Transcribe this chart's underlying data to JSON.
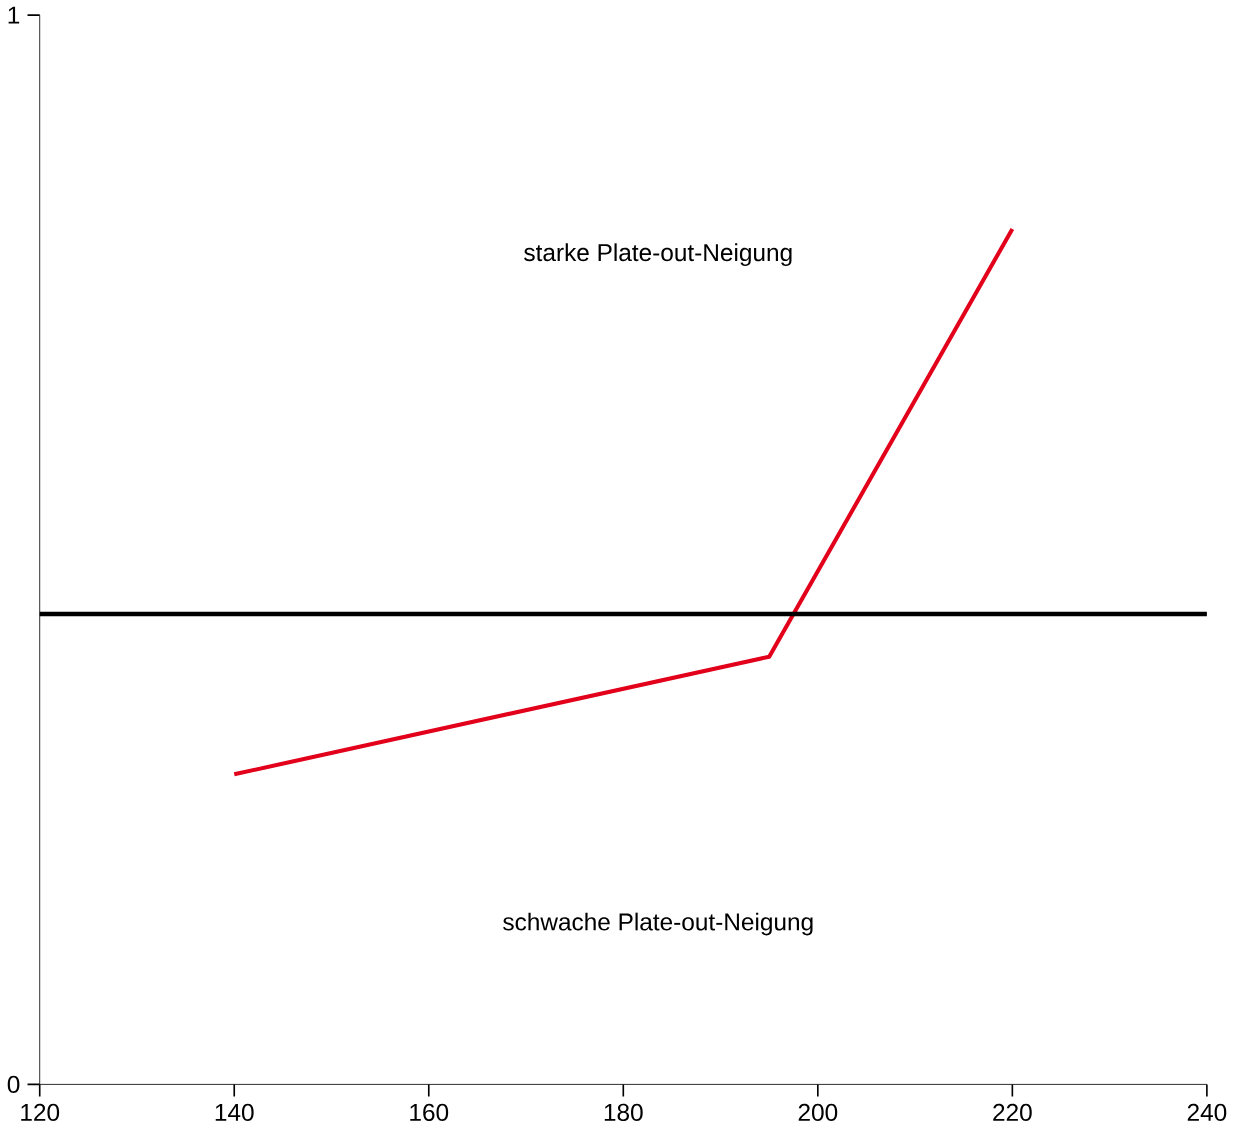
{
  "chart_data": {
    "type": "line",
    "x": [
      140,
      195,
      220
    ],
    "series": [
      {
        "color": "#e2001a",
        "values": [
          0.29,
          0.4,
          0.8
        ]
      }
    ],
    "xlim": [
      120,
      240
    ],
    "ylim": [
      0,
      1
    ],
    "xticks": [
      120,
      140,
      160,
      180,
      200,
      220,
      240
    ],
    "yticks": [
      0,
      1
    ],
    "ref_lines": [
      {
        "axis": "y",
        "value": 0.44,
        "color": "#000000"
      }
    ],
    "annotations": [
      "starke Plate-out-Neigung",
      "schwache Plate-out-Neigung"
    ],
    "grid": false,
    "marker": "none",
    "line_style": "solid"
  }
}
